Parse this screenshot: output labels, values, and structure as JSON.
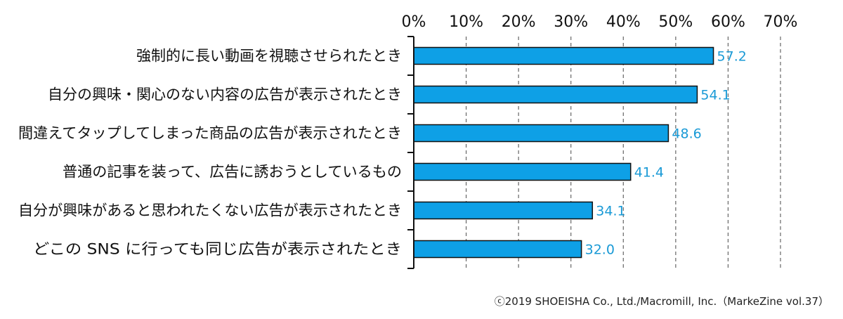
{
  "chart_data": {
    "type": "bar",
    "orientation": "horizontal",
    "categories": [
      "強制的に長い動画を視聴させられたとき",
      "自分の興味・関心のない内容の広告が表示されたとき",
      "間違えてタップしてしまった商品の広告が表示されたとき",
      "普通の記事を装って、広告に誘おうとしているもの",
      "自分が興味があると思われたくない広告が表示されたとき",
      "どこの SNS に行っても同じ広告が表示されたとき"
    ],
    "values": [
      57.2,
      54.1,
      48.6,
      41.4,
      34.1,
      32.0
    ],
    "value_labels": [
      "57.2",
      "54.1",
      "48.6",
      "41.4",
      "34.1",
      "32.0"
    ],
    "xlim": [
      0,
      70
    ],
    "x_ticks": [
      "0%",
      "10%",
      "20%",
      "30%",
      "40%",
      "50%",
      "60%",
      "70%"
    ],
    "tick_position": "top",
    "grid": "vertical dashed",
    "bar_color": "#0ea0e6",
    "label_color": "#1a9ad6"
  },
  "credit": "ⓒ2019 SHOEISHA Co., Ltd./Macromill, Inc.（MarkeZine vol.37）"
}
